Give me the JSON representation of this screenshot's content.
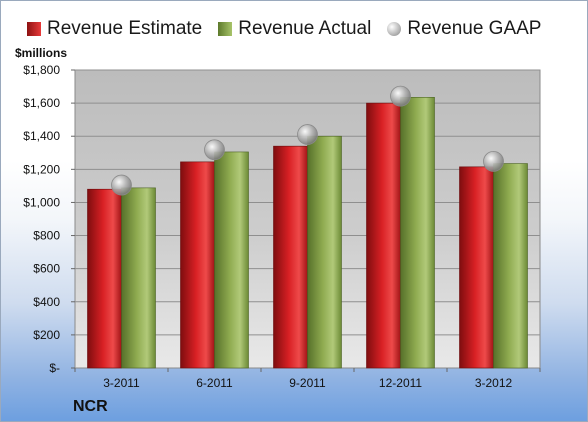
{
  "legend": {
    "estimate": "Revenue Estimate",
    "actual": "Revenue Actual",
    "gaap": "Revenue GAAP"
  },
  "unit_label": "$millions",
  "company": "NCR",
  "colors": {
    "estimate": "#c9191e",
    "actual": "#8eaa4f",
    "gaap": "#b0b0b0"
  },
  "chart_data": {
    "type": "bar",
    "categories": [
      "3-2011",
      "6-2011",
      "9-2011",
      "12-2011",
      "3-2012"
    ],
    "series": [
      {
        "name": "Revenue Estimate",
        "values": [
          1080,
          1245,
          1340,
          1600,
          1215
        ]
      },
      {
        "name": "Revenue Actual",
        "values": [
          1088,
          1305,
          1400,
          1635,
          1235
        ]
      },
      {
        "name": "Revenue GAAP",
        "values": [
          1105,
          1318,
          1410,
          1642,
          1248
        ]
      }
    ],
    "yticks": [
      "$-",
      "$200",
      "$400",
      "$600",
      "$800",
      "$1,000",
      "$1,200",
      "$1,400",
      "$1,600",
      "$1,800"
    ],
    "ylim": [
      0,
      1800
    ],
    "ylabel": "$millions",
    "grid": true,
    "legend_position": "top"
  }
}
